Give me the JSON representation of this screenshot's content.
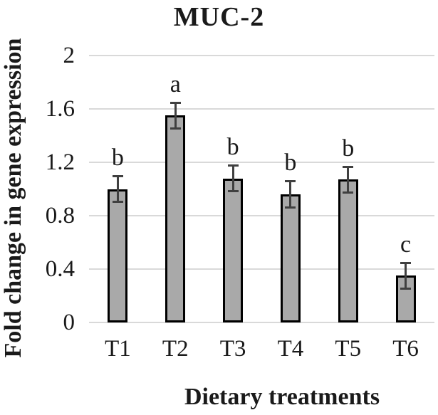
{
  "figure": {
    "background_color": "#ffffff",
    "text_color": "#1a1a1a"
  },
  "chart_data": {
    "type": "bar",
    "title": "MUC-2",
    "xlabel": "Dietary treatments",
    "ylabel": "Fold change in gene expression",
    "categories": [
      "T1",
      "T2",
      "T3",
      "T4",
      "T5",
      "T6"
    ],
    "values": [
      1.0,
      1.55,
      1.08,
      0.96,
      1.07,
      0.35
    ],
    "error_bars": [
      0.1,
      0.1,
      0.1,
      0.1,
      0.1,
      0.1
    ],
    "sig_letters": [
      "b",
      "a",
      "b",
      "b",
      "b",
      "c"
    ],
    "ylim": [
      0,
      2
    ],
    "yticks": [
      0,
      0.4,
      0.8,
      1.2,
      1.6,
      2
    ],
    "ytick_labels": [
      "0",
      "0.4",
      "0.8",
      "1.2",
      "1.6",
      "2"
    ],
    "grid": true,
    "legend": "none",
    "bar_color": "#a9a9a9",
    "bar_border_color": "#000000",
    "error_bar_color": "#404040",
    "gridline_color": "#d9d9d9"
  }
}
